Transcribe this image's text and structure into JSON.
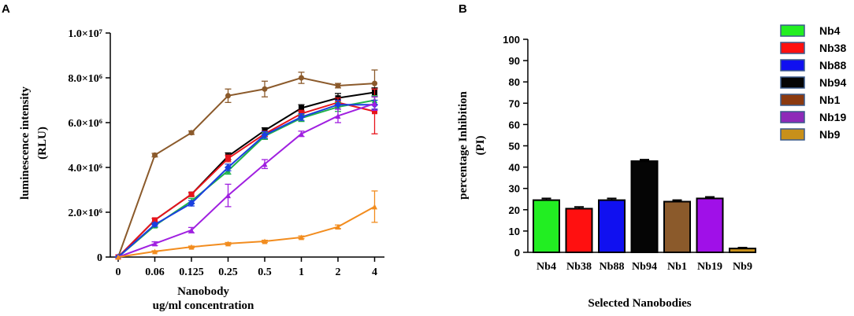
{
  "chart_data": [
    {
      "panel": "A",
      "type": "line",
      "xlabel_line1": "Nanobody",
      "xlabel_line2": "ug/ml concentration",
      "ylabel_line1": "luminescence intensity",
      "ylabel_line2": "(RLU)",
      "categories": [
        "0",
        "0.06",
        "0.125",
        "0.25",
        "0.5",
        "1",
        "2",
        "4"
      ],
      "ylim": [
        0,
        10000000
      ],
      "ytick_values": [
        0,
        2000000,
        4000000,
        6000000,
        8000000,
        10000000
      ],
      "ytick_labels": [
        "0",
        "2.0×10⁶",
        "4.0×10⁶",
        "6.0×10⁶",
        "8.0×10⁶",
        "1.0×10⁷"
      ],
      "series": [
        {
          "name": "Nb1",
          "color": "#8B5A2B",
          "marker": "circle",
          "values": [
            0,
            4550000,
            5550000,
            7200000,
            7500000,
            8000000,
            7650000,
            7750000
          ],
          "errors": [
            0,
            80000,
            80000,
            300000,
            350000,
            250000,
            100000,
            600000
          ]
        },
        {
          "name": "Nb94",
          "color": "#000000",
          "marker": "square",
          "values": [
            0,
            1650000,
            2800000,
            4500000,
            5650000,
            6650000,
            7100000,
            7350000
          ],
          "errors": [
            0,
            80000,
            80000,
            150000,
            120000,
            150000,
            200000,
            200000
          ]
        },
        {
          "name": "Nb38",
          "color": "#E8141C",
          "marker": "square",
          "values": [
            0,
            1650000,
            2800000,
            4400000,
            5500000,
            6400000,
            6900000,
            6500000
          ],
          "errors": [
            0,
            80000,
            80000,
            150000,
            120000,
            150000,
            200000,
            1000000
          ]
        },
        {
          "name": "Nb4",
          "color": "#1FB24A",
          "marker": "triangle",
          "values": [
            0,
            1400000,
            2500000,
            3850000,
            5400000,
            6200000,
            6700000,
            7000000
          ],
          "errors": [
            0,
            80000,
            120000,
            150000,
            150000,
            150000,
            200000,
            200000
          ]
        },
        {
          "name": "Nb88",
          "color": "#1A3FE0",
          "marker": "diamond",
          "values": [
            0,
            1450000,
            2400000,
            4000000,
            5450000,
            6250000,
            6800000,
            6800000
          ],
          "errors": [
            0,
            80000,
            120000,
            150000,
            150000,
            150000,
            200000,
            200000
          ]
        },
        {
          "name": "Nb19",
          "color": "#A020E0",
          "marker": "triangle",
          "values": [
            0,
            600000,
            1200000,
            2750000,
            4150000,
            5500000,
            6300000,
            6850000
          ],
          "errors": [
            0,
            80000,
            120000,
            500000,
            200000,
            120000,
            300000,
            300000
          ]
        },
        {
          "name": "Nb9",
          "color": "#F28C1E",
          "marker": "triangle",
          "values": [
            0,
            250000,
            450000,
            600000,
            700000,
            880000,
            1350000,
            2250000
          ],
          "errors": [
            0,
            30000,
            40000,
            50000,
            50000,
            60000,
            80000,
            700000
          ]
        }
      ]
    },
    {
      "panel": "B",
      "type": "bar",
      "xlabel": "Selected Nanobodies",
      "ylabel_line1": "percentage Inhibition",
      "ylabel_line2": "(PI)",
      "ylim": [
        0,
        100
      ],
      "ytick_values": [
        0,
        10,
        20,
        30,
        40,
        50,
        60,
        70,
        80,
        90,
        100
      ],
      "categories": [
        "Nb4",
        "Nb38",
        "Nb88",
        "Nb94",
        "Nb1",
        "Nb19",
        "Nb9"
      ],
      "values": [
        24.5,
        20.5,
        24.5,
        42.8,
        23.8,
        25.3,
        1.8
      ],
      "errors": [
        0.8,
        0.8,
        0.8,
        0.7,
        0.7,
        0.7,
        0.4
      ],
      "colors": [
        "#22EE22",
        "#FF1010",
        "#1010F0",
        "#050505",
        "#8B5A2B",
        "#A010E8",
        "#C8901A"
      ],
      "legend": [
        {
          "label": "Nb4",
          "color": "#22EE22"
        },
        {
          "label": "Nb38",
          "color": "#FF1010"
        },
        {
          "label": "Nb88",
          "color": "#1010F0"
        },
        {
          "label": "Nb94",
          "color": "#050505"
        },
        {
          "label": "Nb1",
          "color": "#8B3A10"
        },
        {
          "label": "Nb19",
          "color": "#8E2AB8"
        },
        {
          "label": "Nb9",
          "color": "#C8901A"
        }
      ]
    }
  ]
}
